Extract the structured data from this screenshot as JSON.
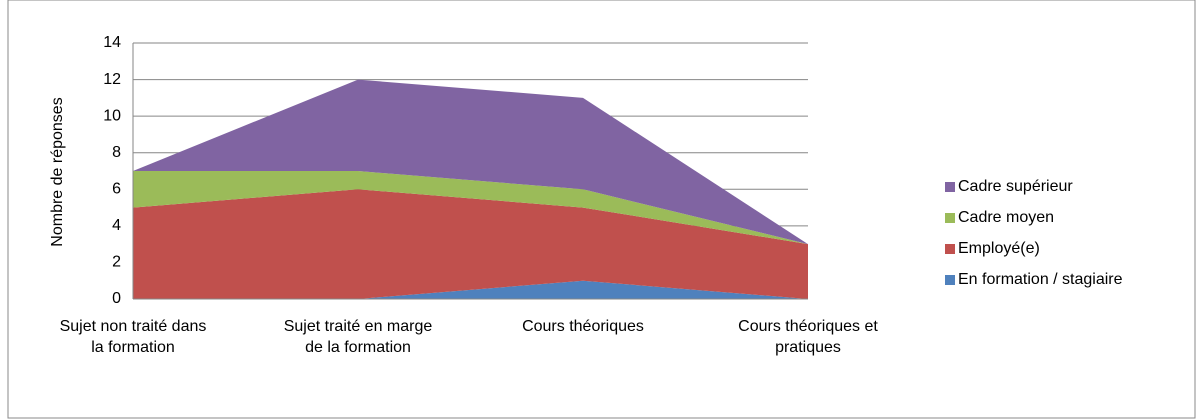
{
  "chart_data": {
    "type": "stacked_area",
    "y_label": "Nombre de réponses",
    "categories": [
      "Sujet non traité dans la formation",
      "Sujet traité en marge de la formation",
      "Cours théoriques",
      "Cours théoriques et pratiques"
    ],
    "series": [
      {
        "name": "En formation / stagiaire",
        "color": "#4f81bd",
        "values": [
          0,
          0,
          1,
          0
        ]
      },
      {
        "name": "Employé(e)",
        "color": "#c0504d",
        "values": [
          5,
          6,
          4,
          3
        ]
      },
      {
        "name": "Cadre moyen",
        "color": "#9bbb59",
        "values": [
          2,
          1,
          1,
          0
        ]
      },
      {
        "name": "Cadre supérieur",
        "color": "#8064a2",
        "values": [
          0,
          5,
          5,
          0
        ]
      }
    ],
    "ylim": [
      0,
      14
    ],
    "yticks": [
      0,
      2,
      4,
      6,
      8,
      10,
      12,
      14
    ],
    "grid": true,
    "legend": "right"
  }
}
